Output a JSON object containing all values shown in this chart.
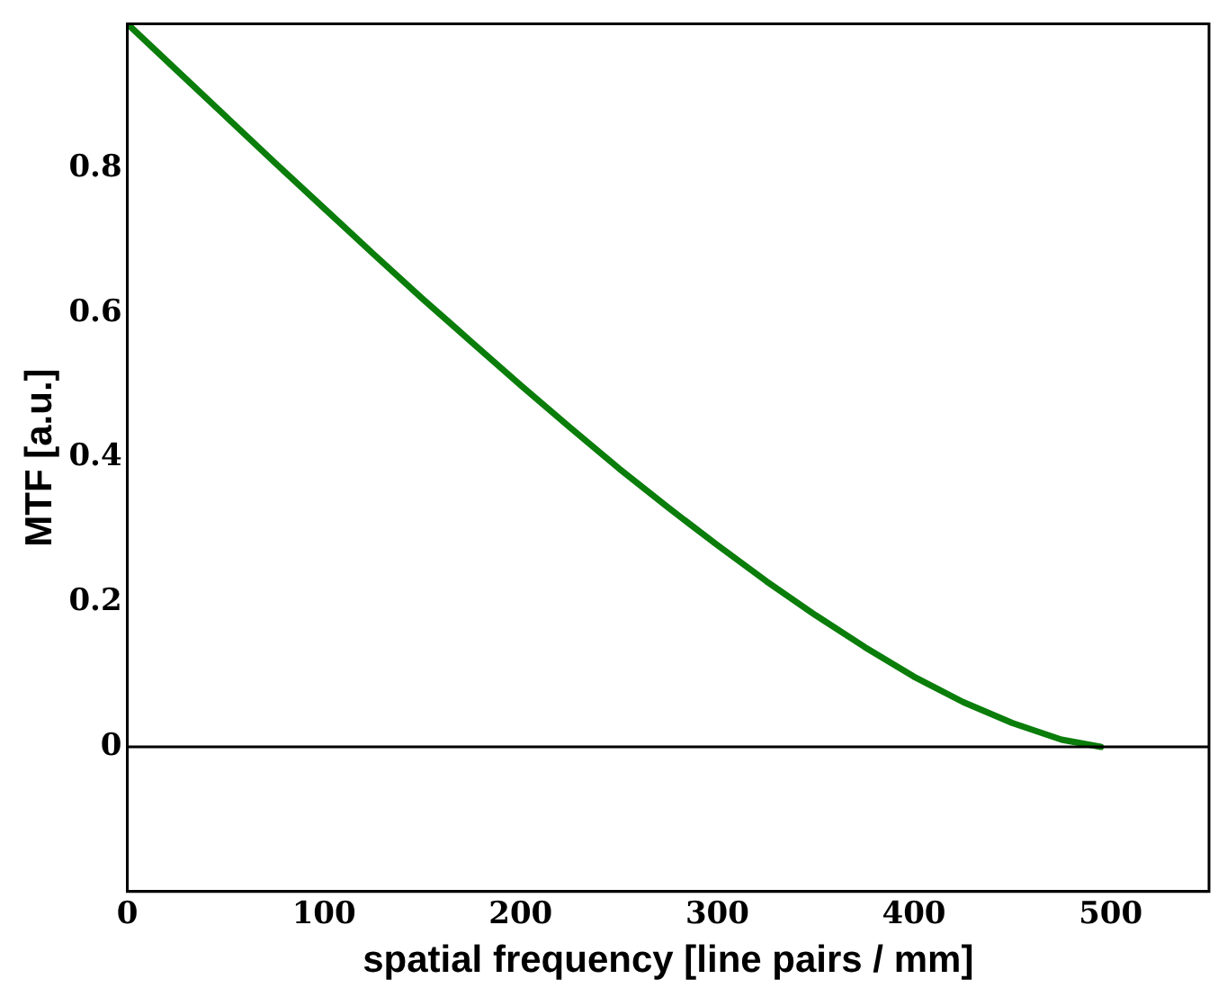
{
  "chart_data": {
    "type": "line",
    "xlabel": "spatial frequency [line pairs / mm]",
    "ylabel": "MTF [a.u.]",
    "x": [
      0,
      25,
      50,
      75,
      100,
      125,
      150,
      175,
      200,
      225,
      250,
      275,
      300,
      325,
      350,
      375,
      400,
      425,
      450,
      475,
      495
    ],
    "series": [
      {
        "color": "#0a7d0a",
        "values": [
          1,
          0.936,
          0.872,
          0.808,
          0.745,
          0.682,
          0.62,
          0.56,
          0.5,
          0.442,
          0.385,
          0.331,
          0.279,
          0.229,
          0.182,
          0.138,
          0.097,
          0.062,
          0.033,
          0.01,
          0
        ]
      }
    ],
    "xlim": [
      0,
      550
    ],
    "xticks": [
      0,
      100,
      200,
      300,
      400,
      500
    ],
    "ylim": [
      -0.2,
      1
    ],
    "yticks": [
      0,
      0.2,
      0.4,
      0.6,
      0.8
    ],
    "ref_lines": [
      {
        "axis": "y",
        "value": 0,
        "color": "#000000"
      }
    ],
    "grid": false,
    "legend": false,
    "marker": "none",
    "line_style": "solid"
  }
}
